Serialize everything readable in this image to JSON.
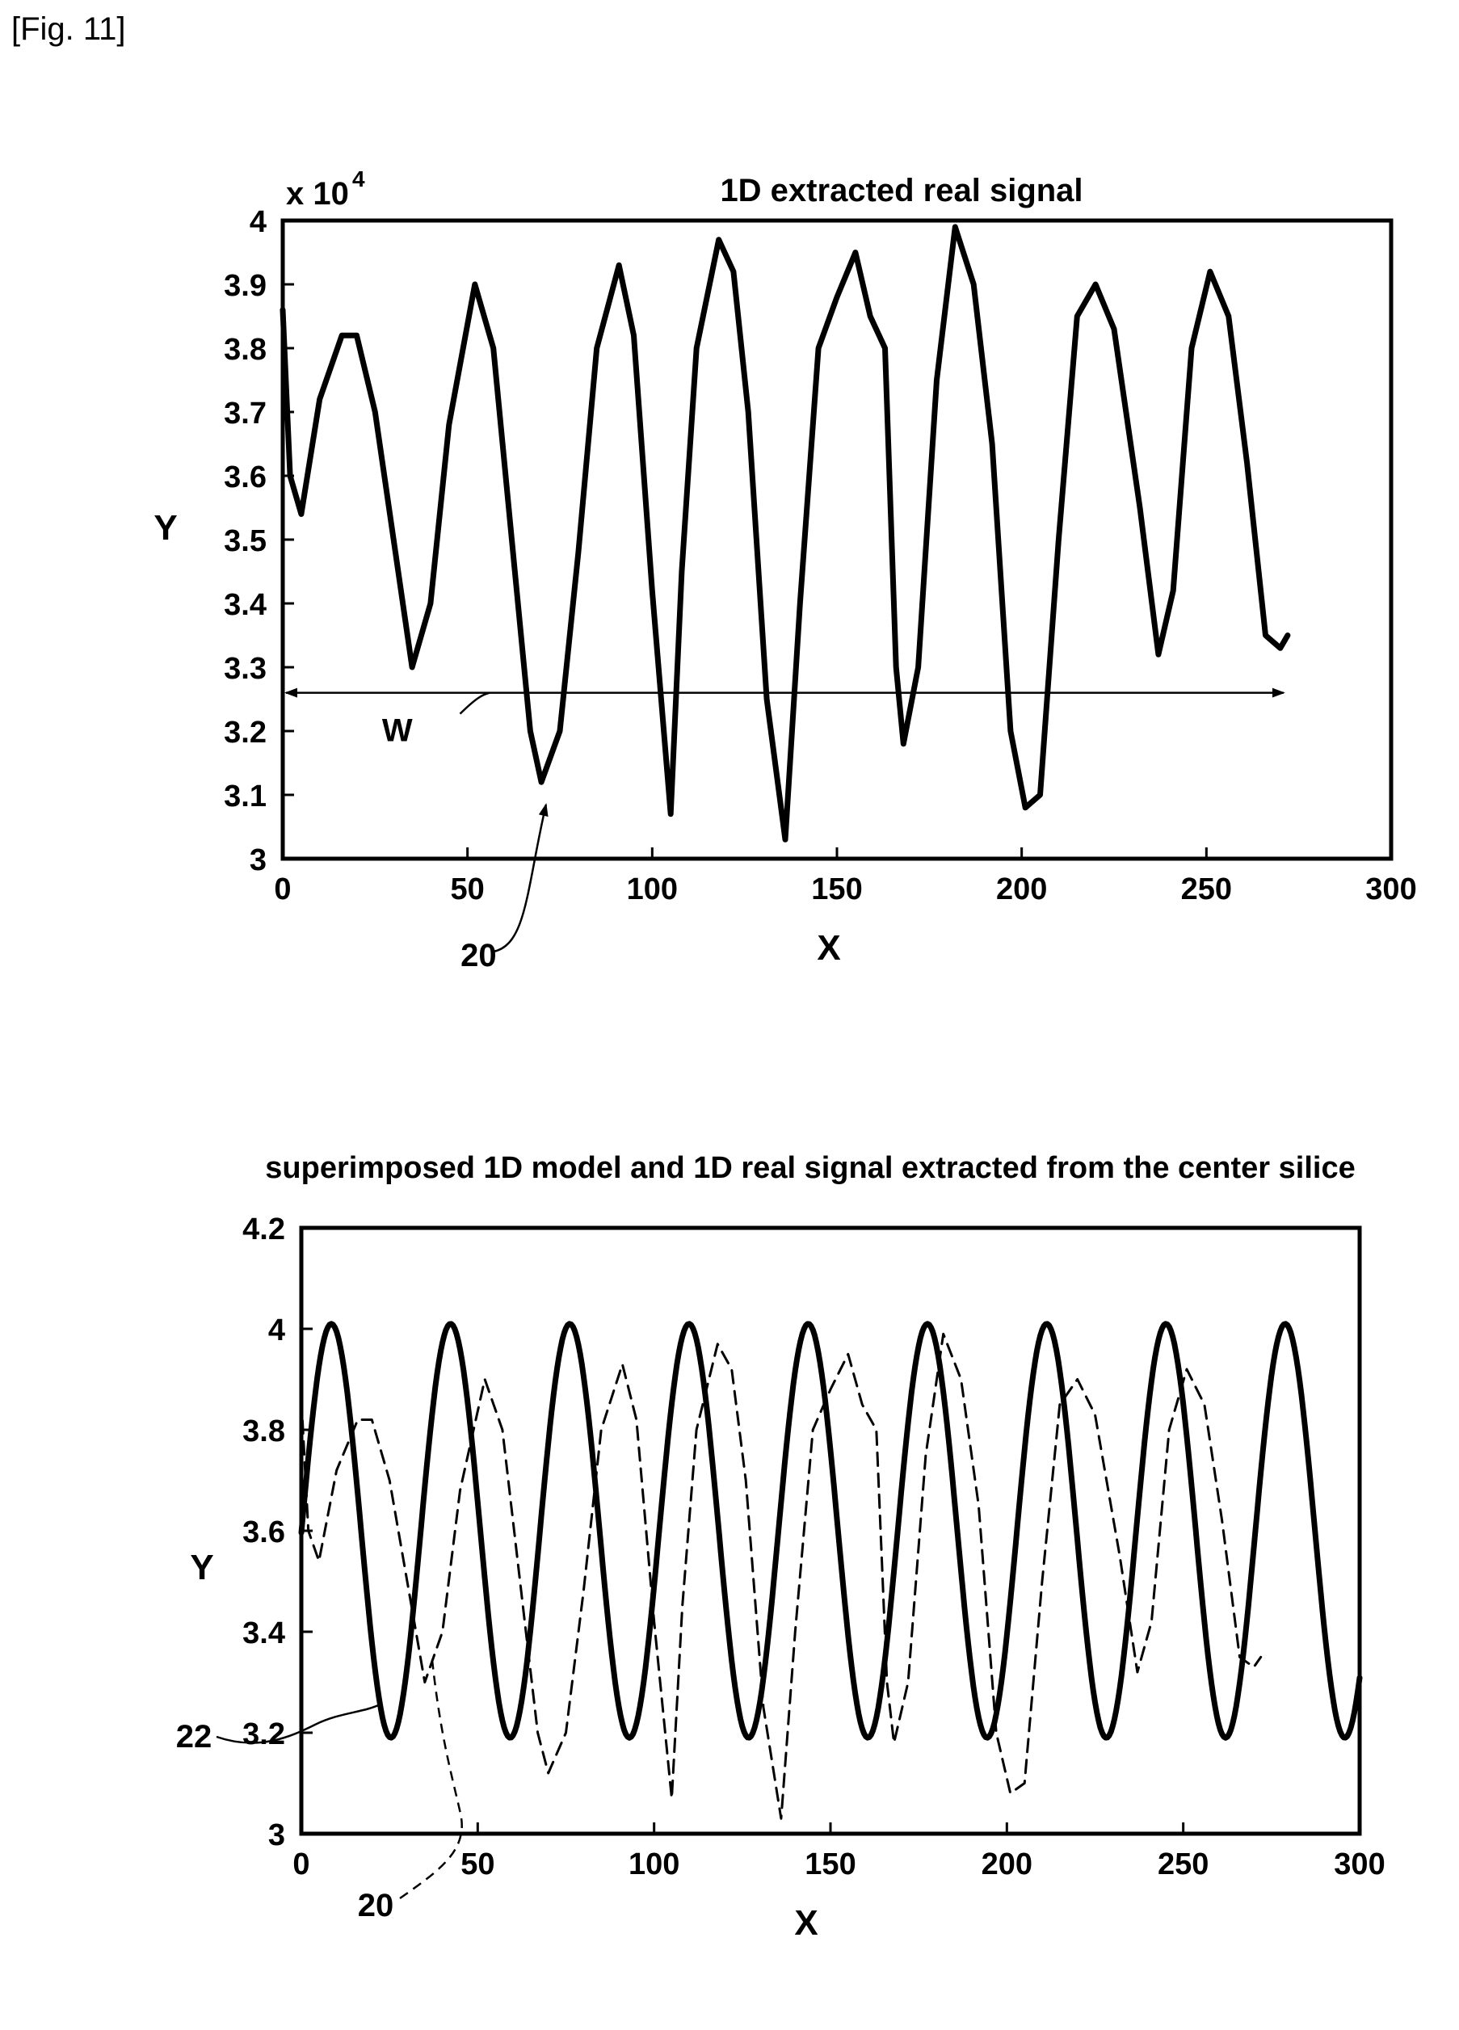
{
  "figure_label": "[Fig. 11]",
  "chart_data": [
    {
      "type": "line",
      "title": "1D extracted real signal",
      "multiplier_label": "x 10",
      "multiplier_exponent": "4",
      "xlabel": "X",
      "ylabel": "Y",
      "xlim": [
        0,
        300
      ],
      "ylim": [
        3,
        4
      ],
      "xticks": [
        0,
        50,
        100,
        150,
        200,
        250,
        300
      ],
      "yticks": [
        3,
        3.1,
        3.2,
        3.3,
        3.4,
        3.5,
        3.6,
        3.7,
        3.8,
        3.9,
        4
      ],
      "ytick_labels": [
        "3",
        "3.1",
        "3.2",
        "3.3",
        "3.4",
        "3.5",
        "3.6",
        "3.7",
        "3.8",
        "3.9",
        "4"
      ],
      "grid": false,
      "series": [
        {
          "label_ref": "20",
          "style": "solid",
          "x": [
            0,
            2,
            5,
            10,
            16,
            20,
            25,
            30,
            35,
            40,
            45,
            52,
            57,
            62,
            67,
            70,
            75,
            80,
            85,
            91,
            95,
            100,
            105,
            108,
            112,
            118,
            122,
            126,
            131,
            136,
            140,
            145,
            150,
            155,
            159,
            163,
            166,
            168,
            172,
            177,
            182,
            187,
            192,
            197,
            201,
            205,
            210,
            215,
            220,
            225,
            232,
            237,
            241,
            246,
            251,
            256,
            261,
            266,
            270,
            272
          ],
          "y": [
            3.86,
            3.6,
            3.54,
            3.72,
            3.82,
            3.82,
            3.7,
            3.5,
            3.3,
            3.4,
            3.68,
            3.9,
            3.8,
            3.5,
            3.2,
            3.12,
            3.2,
            3.48,
            3.8,
            3.93,
            3.82,
            3.42,
            3.07,
            3.45,
            3.8,
            3.97,
            3.92,
            3.7,
            3.25,
            3.03,
            3.4,
            3.8,
            3.88,
            3.95,
            3.85,
            3.8,
            3.3,
            3.18,
            3.3,
            3.75,
            3.99,
            3.9,
            3.65,
            3.2,
            3.08,
            3.1,
            3.5,
            3.85,
            3.9,
            3.83,
            3.55,
            3.32,
            3.42,
            3.8,
            3.92,
            3.85,
            3.62,
            3.35,
            3.33,
            3.35
          ]
        }
      ],
      "annotations": [
        {
          "text": "W",
          "meaning": "width arrow spanning the signal",
          "x_from": 0,
          "x_to": 270,
          "y": 3.26
        },
        {
          "text": "20",
          "points_to": {
            "x": 73,
            "y": 3.11
          }
        }
      ]
    },
    {
      "type": "line",
      "title": "superimposed 1D model and 1D real signal extracted from the center silice",
      "xlabel": "X",
      "ylabel": "Y",
      "xlim": [
        0,
        300
      ],
      "ylim": [
        3,
        4.2
      ],
      "xticks": [
        0,
        50,
        100,
        150,
        200,
        250,
        300
      ],
      "yticks": [
        3,
        3.2,
        3.4,
        3.6,
        3.8,
        4,
        4.2
      ],
      "ytick_labels": [
        "3",
        "3.2",
        "3.4",
        "3.6",
        "3.8",
        "4",
        "4.2"
      ],
      "grid": false,
      "series": [
        {
          "label_ref": "22",
          "style": "solid",
          "model": "sinusoid",
          "x_start": 0,
          "x_end": 300,
          "mean": 3.6,
          "amplitude": 0.41,
          "period": 33.8,
          "first_peak_x": 8.5
        },
        {
          "label_ref": "20",
          "style": "dashed",
          "x": [
            0,
            2,
            5,
            10,
            16,
            20,
            25,
            30,
            35,
            40,
            45,
            52,
            57,
            62,
            67,
            70,
            75,
            80,
            85,
            91,
            95,
            100,
            105,
            108,
            112,
            118,
            122,
            126,
            131,
            136,
            140,
            145,
            150,
            155,
            159,
            163,
            166,
            168,
            172,
            177,
            182,
            187,
            192,
            197,
            201,
            205,
            210,
            215,
            220,
            225,
            232,
            237,
            241,
            246,
            251,
            256,
            261,
            266,
            270,
            272
          ],
          "y": [
            3.86,
            3.6,
            3.54,
            3.72,
            3.82,
            3.82,
            3.7,
            3.5,
            3.3,
            3.4,
            3.68,
            3.9,
            3.8,
            3.5,
            3.2,
            3.12,
            3.2,
            3.48,
            3.8,
            3.93,
            3.82,
            3.42,
            3.07,
            3.45,
            3.8,
            3.97,
            3.92,
            3.7,
            3.25,
            3.03,
            3.4,
            3.8,
            3.88,
            3.95,
            3.85,
            3.8,
            3.3,
            3.18,
            3.3,
            3.75,
            3.99,
            3.9,
            3.65,
            3.2,
            3.08,
            3.1,
            3.5,
            3.85,
            3.9,
            3.83,
            3.55,
            3.32,
            3.42,
            3.8,
            3.92,
            3.85,
            3.62,
            3.35,
            3.33,
            3.35
          ]
        }
      ],
      "annotations": [
        {
          "text": "22",
          "points_to": {
            "x": 20,
            "y": 3.32
          }
        },
        {
          "text": "20",
          "points_to": {
            "x": 37,
            "y": 3.35
          }
        }
      ]
    }
  ]
}
